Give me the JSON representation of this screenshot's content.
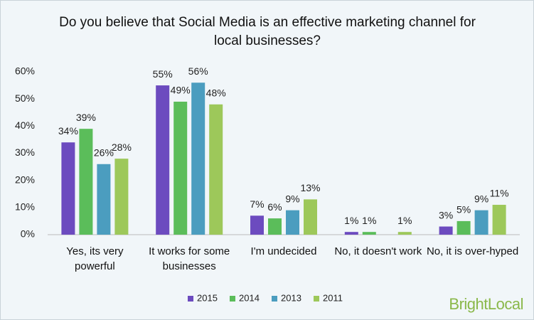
{
  "chart_data": {
    "type": "bar",
    "title": "Do you believe that Social Media is an effective marketing channel for local businesses?",
    "categories": [
      "Yes, its very powerful",
      "It works for some businesses",
      "I'm undecided",
      "No, it doesn't work",
      "No, it is over-hyped"
    ],
    "series": [
      {
        "name": "2015",
        "color": "#6c4bbf",
        "values": [
          34,
          55,
          7,
          1,
          3
        ],
        "value_labels": [
          "34%",
          "55%",
          "7%",
          "1%",
          "3%"
        ]
      },
      {
        "name": "2014",
        "color": "#5bbd5a",
        "values": [
          39,
          49,
          6,
          1,
          5
        ],
        "value_labels": [
          "39%",
          "49%",
          "6%",
          "1%",
          "5%"
        ]
      },
      {
        "name": "2013",
        "color": "#4b9dbf",
        "values": [
          26,
          56,
          9,
          null,
          9
        ],
        "value_labels": [
          "26%",
          "56%",
          "9%",
          null,
          "9%"
        ]
      },
      {
        "name": "2011",
        "color": "#9dc85a",
        "values": [
          28,
          48,
          13,
          1,
          11
        ],
        "value_labels": [
          "28%",
          "48%",
          "13%",
          "1%",
          "11%"
        ]
      }
    ],
    "ylim": [
      0,
      60
    ],
    "yticks": [
      {
        "value": 0,
        "label": "0%"
      },
      {
        "value": 10,
        "label": "10%"
      },
      {
        "value": 20,
        "label": "20%"
      },
      {
        "value": 30,
        "label": "30%"
      },
      {
        "value": 40,
        "label": "40%"
      },
      {
        "value": 50,
        "label": "50%"
      },
      {
        "value": 60,
        "label": "60%"
      }
    ],
    "legend": "bottom",
    "logo": "BrightLocal"
  }
}
